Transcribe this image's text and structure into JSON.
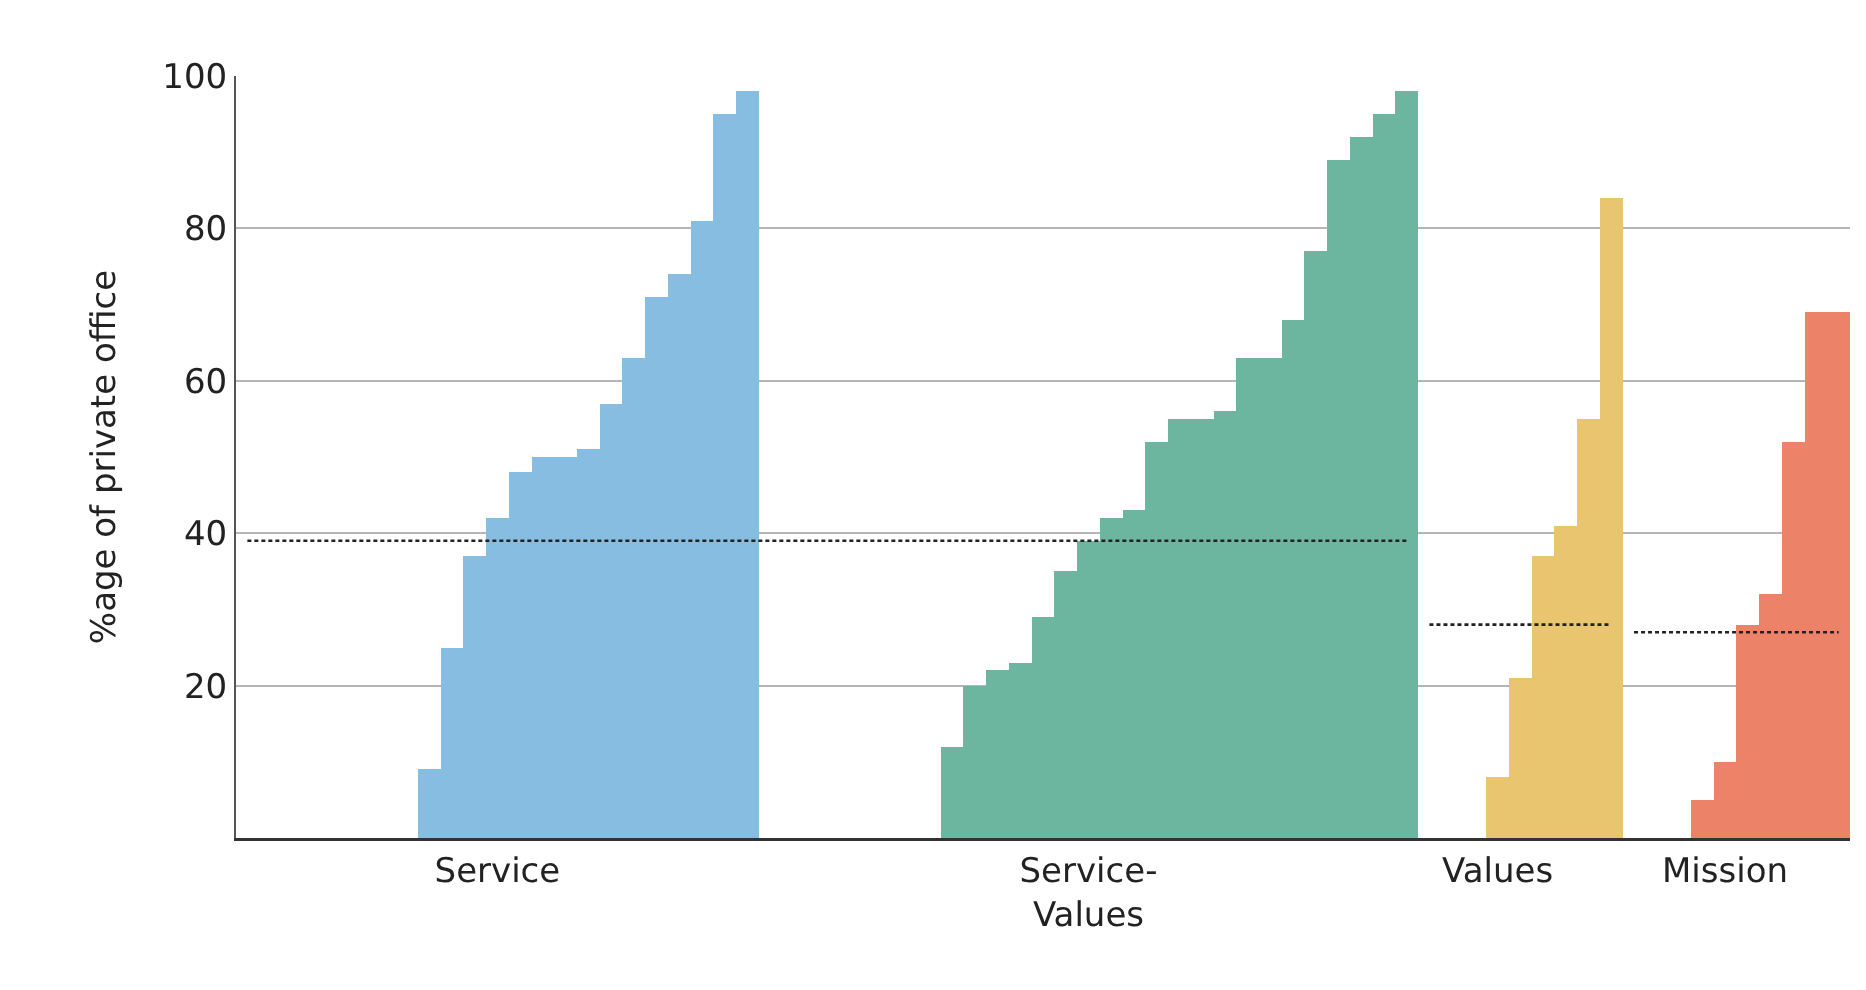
{
  "chart_data": {
    "type": "bar",
    "ylabel": "%age of private office",
    "categories": [
      null,
      null,
      null,
      null,
      null,
      null,
      null,
      null,
      null,
      null,
      null,
      "Service",
      null,
      null,
      null,
      null,
      null,
      null,
      null,
      null,
      null,
      null,
      null,
      null,
      null,
      null,
      null,
      null,
      null,
      null,
      null,
      null,
      null,
      null,
      null,
      null,
      null,
      "Service-Values",
      null,
      null,
      null,
      null,
      null,
      null,
      null,
      null,
      null,
      null,
      null,
      null,
      null,
      null,
      null,
      null,
      null,
      "Values",
      null,
      null,
      null,
      null,
      null,
      null,
      null,
      null,
      null,
      "Mission",
      null,
      null,
      null,
      null,
      null
    ],
    "series": [
      {
        "type": "bar",
        "color": "#86bde0",
        "values": [
          0,
          0,
          0,
          0,
          0,
          0,
          0,
          0,
          9,
          25,
          37,
          42,
          48,
          50,
          50,
          51,
          57,
          63,
          71,
          74,
          81,
          95,
          98,
          null,
          null,
          null,
          null,
          null,
          null,
          null,
          null,
          null,
          null,
          null,
          null,
          null,
          null,
          null,
          null,
          null,
          null,
          null,
          null,
          null,
          null,
          null,
          null,
          null,
          null,
          null,
          null,
          null,
          null,
          null,
          null,
          null,
          null,
          null,
          null,
          null,
          null,
          null,
          null,
          null,
          null,
          null,
          null,
          null,
          null,
          null,
          null
        ]
      },
      {
        "type": "bar",
        "color": "#6cb6a0",
        "values": [
          null,
          null,
          null,
          null,
          null,
          null,
          null,
          null,
          null,
          null,
          null,
          null,
          null,
          null,
          null,
          null,
          null,
          null,
          null,
          null,
          null,
          null,
          null,
          0,
          0,
          0,
          0,
          0,
          0,
          0,
          0,
          12,
          20,
          22,
          23,
          29,
          35,
          39,
          42,
          43,
          52,
          55,
          55,
          56,
          63,
          63,
          68,
          77,
          89,
          92,
          95,
          98,
          null,
          null,
          null,
          null,
          null,
          null,
          null,
          null,
          null,
          null,
          null,
          null,
          null,
          null,
          null,
          null,
          null,
          null,
          null
        ]
      },
      {
        "type": "bar",
        "color": "#e9c570",
        "values": [
          null,
          null,
          null,
          null,
          null,
          null,
          null,
          null,
          null,
          null,
          null,
          null,
          null,
          null,
          null,
          null,
          null,
          null,
          null,
          null,
          null,
          null,
          null,
          null,
          null,
          null,
          null,
          null,
          null,
          null,
          null,
          null,
          null,
          null,
          null,
          null,
          null,
          null,
          null,
          null,
          null,
          null,
          null,
          null,
          null,
          null,
          null,
          null,
          null,
          null,
          null,
          null,
          0,
          0,
          0,
          8,
          21,
          37,
          41,
          55,
          84,
          null,
          null,
          null,
          null,
          null,
          null,
          null,
          null,
          null,
          null
        ]
      },
      {
        "type": "bar",
        "color": "#ec8268",
        "values": [
          null,
          null,
          null,
          null,
          null,
          null,
          null,
          null,
          null,
          null,
          null,
          null,
          null,
          null,
          null,
          null,
          null,
          null,
          null,
          null,
          null,
          null,
          null,
          null,
          null,
          null,
          null,
          null,
          null,
          null,
          null,
          null,
          null,
          null,
          null,
          null,
          null,
          null,
          null,
          null,
          null,
          null,
          null,
          null,
          null,
          null,
          null,
          null,
          null,
          null,
          null,
          null,
          null,
          null,
          null,
          null,
          null,
          null,
          null,
          null,
          null,
          0,
          0,
          0,
          5,
          10,
          28,
          32,
          52,
          69,
          69
        ]
      },
      {
        "type": "line",
        "color": "#222222",
        "line_style": "dotted",
        "values": [
          39,
          39,
          39,
          39,
          39,
          39,
          39,
          39,
          39,
          39,
          39,
          39,
          39,
          39,
          39,
          39,
          39,
          39,
          39,
          39,
          39,
          39,
          39,
          39,
          39,
          39,
          39,
          39,
          39,
          39,
          39,
          39,
          39,
          39,
          39,
          39,
          39,
          39,
          39,
          39,
          39,
          39,
          39,
          39,
          39,
          39,
          39,
          39,
          39,
          39,
          39,
          39,
          null,
          null,
          null,
          null,
          null,
          null,
          null,
          null,
          null,
          null,
          null,
          null,
          null,
          null,
          null,
          null,
          null,
          null,
          null
        ]
      },
      {
        "type": "line",
        "color": "#222222",
        "line_style": "dotted",
        "values": [
          null,
          null,
          null,
          null,
          null,
          null,
          null,
          null,
          null,
          null,
          null,
          null,
          null,
          null,
          null,
          null,
          null,
          null,
          null,
          null,
          null,
          null,
          null,
          null,
          null,
          null,
          null,
          null,
          null,
          null,
          null,
          null,
          null,
          null,
          null,
          null,
          null,
          null,
          null,
          null,
          null,
          null,
          null,
          null,
          null,
          null,
          null,
          null,
          null,
          null,
          null,
          null,
          28,
          28,
          28,
          28,
          28,
          28,
          28,
          28,
          28,
          null,
          null,
          null,
          null,
          null,
          null,
          null,
          null,
          null,
          null
        ]
      },
      {
        "type": "line",
        "color": "#222222",
        "line_style": "dotted",
        "values": [
          null,
          null,
          null,
          null,
          null,
          null,
          null,
          null,
          null,
          null,
          null,
          null,
          null,
          null,
          null,
          null,
          null,
          null,
          null,
          null,
          null,
          null,
          null,
          null,
          null,
          null,
          null,
          null,
          null,
          null,
          null,
          null,
          null,
          null,
          null,
          null,
          null,
          null,
          null,
          null,
          null,
          null,
          null,
          null,
          null,
          null,
          null,
          null,
          null,
          null,
          null,
          null,
          null,
          null,
          null,
          null,
          null,
          null,
          null,
          null,
          null,
          27,
          27,
          27,
          27,
          27,
          27,
          27,
          27,
          27,
          27
        ]
      }
    ],
    "ylim": [
      0,
      100
    ],
    "yticks": [
      20,
      40,
      60,
      80,
      100
    ],
    "grid": "y"
  }
}
